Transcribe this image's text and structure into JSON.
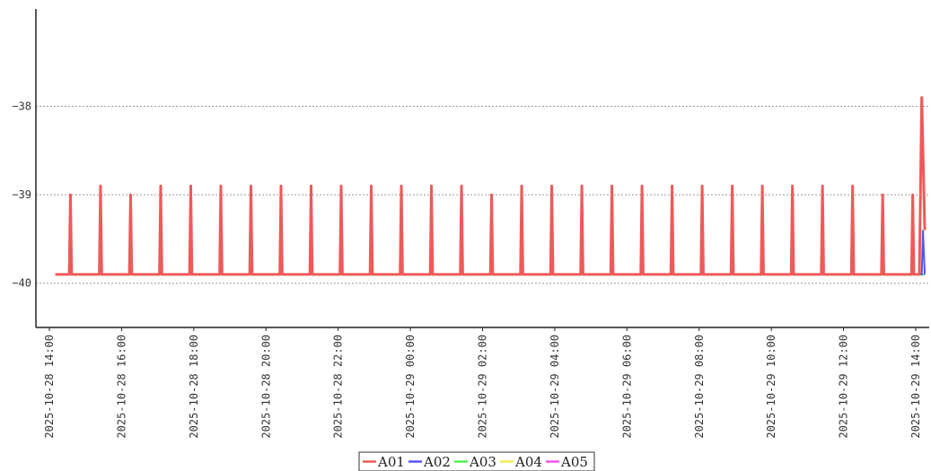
{
  "chart_data": {
    "type": "line",
    "title": "",
    "xlabel": "",
    "ylabel": "",
    "ylim": [
      -40.5,
      -36.9
    ],
    "y_ticks": [
      -38,
      -39,
      -40
    ],
    "x_ticks": [
      "2025-10-28 14:00",
      "2025-10-28 16:00",
      "2025-10-28 18:00",
      "2025-10-28 20:00",
      "2025-10-28 22:00",
      "2025-10-29 00:00",
      "2025-10-29 02:00",
      "2025-10-29 04:00",
      "2025-10-29 06:00",
      "2025-10-29 08:00",
      "2025-10-29 10:00",
      "2025-10-29 12:00",
      "2025-10-29 14:00"
    ],
    "xlim": [
      "2025-10-28 14:00",
      "2025-10-29 14:00"
    ],
    "x_start": "2025-10-28 14:10",
    "x_end": "2025-10-29 14:15",
    "baseline": -39.9,
    "grid": "horizontal dashed",
    "legend_position": "bottom-center",
    "spikes": [
      {
        "time": "2025-10-28 14:35",
        "A01": -39.0,
        "A02": -39.4
      },
      {
        "time": "2025-10-28 15:25",
        "A01": -38.9,
        "A02": -39.4
      },
      {
        "time": "2025-10-28 16:15",
        "A01": -39.0,
        "A02": -39.5
      },
      {
        "time": "2025-10-28 17:05",
        "A01": -38.9,
        "A02": -39.4
      },
      {
        "time": "2025-10-28 17:55",
        "A01": -38.9,
        "A02": -39.4
      },
      {
        "time": "2025-10-28 18:45",
        "A01": -38.9,
        "A02": -39.4
      },
      {
        "time": "2025-10-28 19:35",
        "A01": -38.9,
        "A02": -39.3
      },
      {
        "time": "2025-10-28 20:25",
        "A01": -38.9,
        "A02": -39.3
      },
      {
        "time": "2025-10-28 21:15",
        "A01": -38.9,
        "A02": -39.4
      },
      {
        "time": "2025-10-28 22:05",
        "A01": -38.9,
        "A02": -39.4
      },
      {
        "time": "2025-10-28 22:55",
        "A01": -38.9,
        "A02": -39.4
      },
      {
        "time": "2025-10-28 23:45",
        "A01": -38.9,
        "A02": -39.4
      },
      {
        "time": "2025-10-29 00:35",
        "A01": -38.9,
        "A02": -39.4
      },
      {
        "time": "2025-10-29 01:25",
        "A01": -38.9,
        "A02": -39.3
      },
      {
        "time": "2025-10-29 02:15",
        "A01": -39.0,
        "A02": -39.5
      },
      {
        "time": "2025-10-29 03:05",
        "A01": -38.9,
        "A02": -39.3
      },
      {
        "time": "2025-10-29 03:55",
        "A01": -38.9,
        "A02": -39.4
      },
      {
        "time": "2025-10-29 04:45",
        "A01": -38.9,
        "A02": -39.4
      },
      {
        "time": "2025-10-29 05:35",
        "A01": -38.9,
        "A02": -39.4
      },
      {
        "time": "2025-10-29 06:25",
        "A01": -38.9,
        "A02": -39.3
      },
      {
        "time": "2025-10-29 07:15",
        "A01": -38.9,
        "A02": -39.4
      },
      {
        "time": "2025-10-29 08:05",
        "A01": -38.9,
        "A02": -39.4
      },
      {
        "time": "2025-10-29 08:55",
        "A01": -38.9,
        "A02": -39.4
      },
      {
        "time": "2025-10-29 09:45",
        "A01": -38.9,
        "A02": -39.4
      },
      {
        "time": "2025-10-29 10:35",
        "A01": -38.9,
        "A02": -39.4
      },
      {
        "time": "2025-10-29 11:25",
        "A01": -38.9,
        "A02": -39.4
      },
      {
        "time": "2025-10-29 12:15",
        "A01": -38.9,
        "A02": -39.4
      },
      {
        "time": "2025-10-29 13:05",
        "A01": -39.0,
        "A02": -39.4
      },
      {
        "time": "2025-10-29 13:55",
        "A01": -39.0,
        "A02": -39.5
      }
    ],
    "final_peak": {
      "time": "2025-10-29 14:10",
      "A01": -37.9
    },
    "final_end": {
      "A01": -39.4,
      "A02": -39.4
    },
    "series": [
      {
        "name": "A01",
        "color": "#ee5a5a"
      },
      {
        "name": "A02",
        "color": "#5555ee"
      },
      {
        "name": "A03",
        "color": "#55ee55"
      },
      {
        "name": "A04",
        "color": "#eeee55"
      },
      {
        "name": "A05",
        "color": "#ee55ee"
      }
    ]
  }
}
